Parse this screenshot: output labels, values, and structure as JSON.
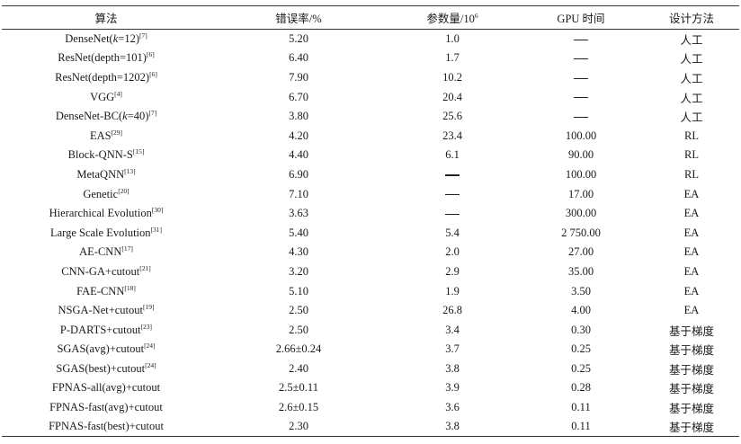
{
  "table": {
    "headers": {
      "method": "算法",
      "error_rate": "错误率/%",
      "params_prefix": "参数量/10",
      "params_exp": "6",
      "gpu_time": "GPU 时间",
      "design": "设计方法"
    },
    "rows": [
      {
        "name_pre": "DenseNet(",
        "name_italic": "k",
        "name_post": "=12)",
        "ref": "[7]",
        "error": "5.20",
        "params": "1.0",
        "gpu": "—",
        "design": "人工"
      },
      {
        "name_pre": "ResNet(depth=101)",
        "name_italic": "",
        "name_post": "",
        "ref": "[6]",
        "error": "6.40",
        "params": "1.7",
        "gpu": "—",
        "design": "人工"
      },
      {
        "name_pre": "ResNet(depth=1202)",
        "name_italic": "",
        "name_post": "",
        "ref": "[6]",
        "error": "7.90",
        "params": "10.2",
        "gpu": "—",
        "design": "人工"
      },
      {
        "name_pre": "VGG",
        "name_italic": "",
        "name_post": "",
        "ref": "[4]",
        "error": "6.70",
        "params": "20.4",
        "gpu": "—",
        "design": "人工"
      },
      {
        "name_pre": "DenseNet-BC(",
        "name_italic": "k",
        "name_post": "=40)",
        "ref": "[7]",
        "error": "3.80",
        "params": "25.6",
        "gpu": "—",
        "design": "人工"
      },
      {
        "name_pre": "EAS",
        "name_italic": "",
        "name_post": "",
        "ref": "[29]",
        "error": "4.20",
        "params": "23.4",
        "gpu": "100.00",
        "design": "RL"
      },
      {
        "name_pre": "Block-QNN-S",
        "name_italic": "",
        "name_post": "",
        "ref": "[15]",
        "error": "4.40",
        "params": "6.1",
        "gpu": "90.00",
        "design": "RL"
      },
      {
        "name_pre": "MetaQNN",
        "name_italic": "",
        "name_post": "",
        "ref": "[13]",
        "error": "6.90",
        "params": "—",
        "gpu": "100.00",
        "design": "RL"
      },
      {
        "name_pre": "Genetic",
        "name_italic": "",
        "name_post": "",
        "ref": "[20]",
        "error": "7.10",
        "params": "—",
        "gpu": "17.00",
        "design": "EA"
      },
      {
        "name_pre": "Hierarchical Evolution",
        "name_italic": "",
        "name_post": "",
        "ref": "[30]",
        "error": "3.63",
        "params": "—",
        "gpu": "300.00",
        "design": "EA"
      },
      {
        "name_pre": "Large Scale Evolution",
        "name_italic": "",
        "name_post": "",
        "ref": "[31]",
        "error": "5.40",
        "params": "5.4",
        "gpu": "2 750.00",
        "design": "EA"
      },
      {
        "name_pre": "AE-CNN",
        "name_italic": "",
        "name_post": "",
        "ref": "[17]",
        "error": "4.30",
        "params": "2.0",
        "gpu": "27.00",
        "design": "EA"
      },
      {
        "name_pre": "CNN-GA+cutout",
        "name_italic": "",
        "name_post": "",
        "ref": "[21]",
        "error": "3.20",
        "params": "2.9",
        "gpu": "35.00",
        "design": "EA"
      },
      {
        "name_pre": "FAE-CNN",
        "name_italic": "",
        "name_post": "",
        "ref": "[18]",
        "error": "5.10",
        "params": "1.9",
        "gpu": "3.50",
        "design": "EA"
      },
      {
        "name_pre": "NSGA-Net+cutout",
        "name_italic": "",
        "name_post": "",
        "ref": "[19]",
        "error": "2.50",
        "params": "26.8",
        "gpu": "4.00",
        "design": "EA"
      },
      {
        "name_pre": "P-DARTS+cutout",
        "name_italic": "",
        "name_post": "",
        "ref": "[23]",
        "error": "2.50",
        "params": "3.4",
        "gpu": "0.30",
        "design": "基于梯度"
      },
      {
        "name_pre": "SGAS(avg)+cutout",
        "name_italic": "",
        "name_post": "",
        "ref": "[24]",
        "error": "2.66±0.24",
        "params": "3.7",
        "gpu": "0.25",
        "design": "基于梯度"
      },
      {
        "name_pre": "SGAS(best)+cutout",
        "name_italic": "",
        "name_post": "",
        "ref": "[24]",
        "error": "2.40",
        "params": "3.8",
        "gpu": "0.25",
        "design": "基于梯度"
      },
      {
        "name_pre": "FPNAS-all(avg)+cutout",
        "name_italic": "",
        "name_post": "",
        "ref": "",
        "error": "2.5±0.11",
        "params": "3.9",
        "gpu": "0.28",
        "design": "基于梯度"
      },
      {
        "name_pre": "FPNAS-fast(avg)+cutout",
        "name_italic": "",
        "name_post": "",
        "ref": "",
        "error": "2.6±0.15",
        "params": "3.6",
        "gpu": "0.11",
        "design": "基于梯度"
      },
      {
        "name_pre": "FPNAS-fast(best)+cutout",
        "name_italic": "",
        "name_post": "",
        "ref": "",
        "error": "2.30",
        "params": "3.8",
        "gpu": "0.11",
        "design": "基于梯度"
      }
    ]
  }
}
